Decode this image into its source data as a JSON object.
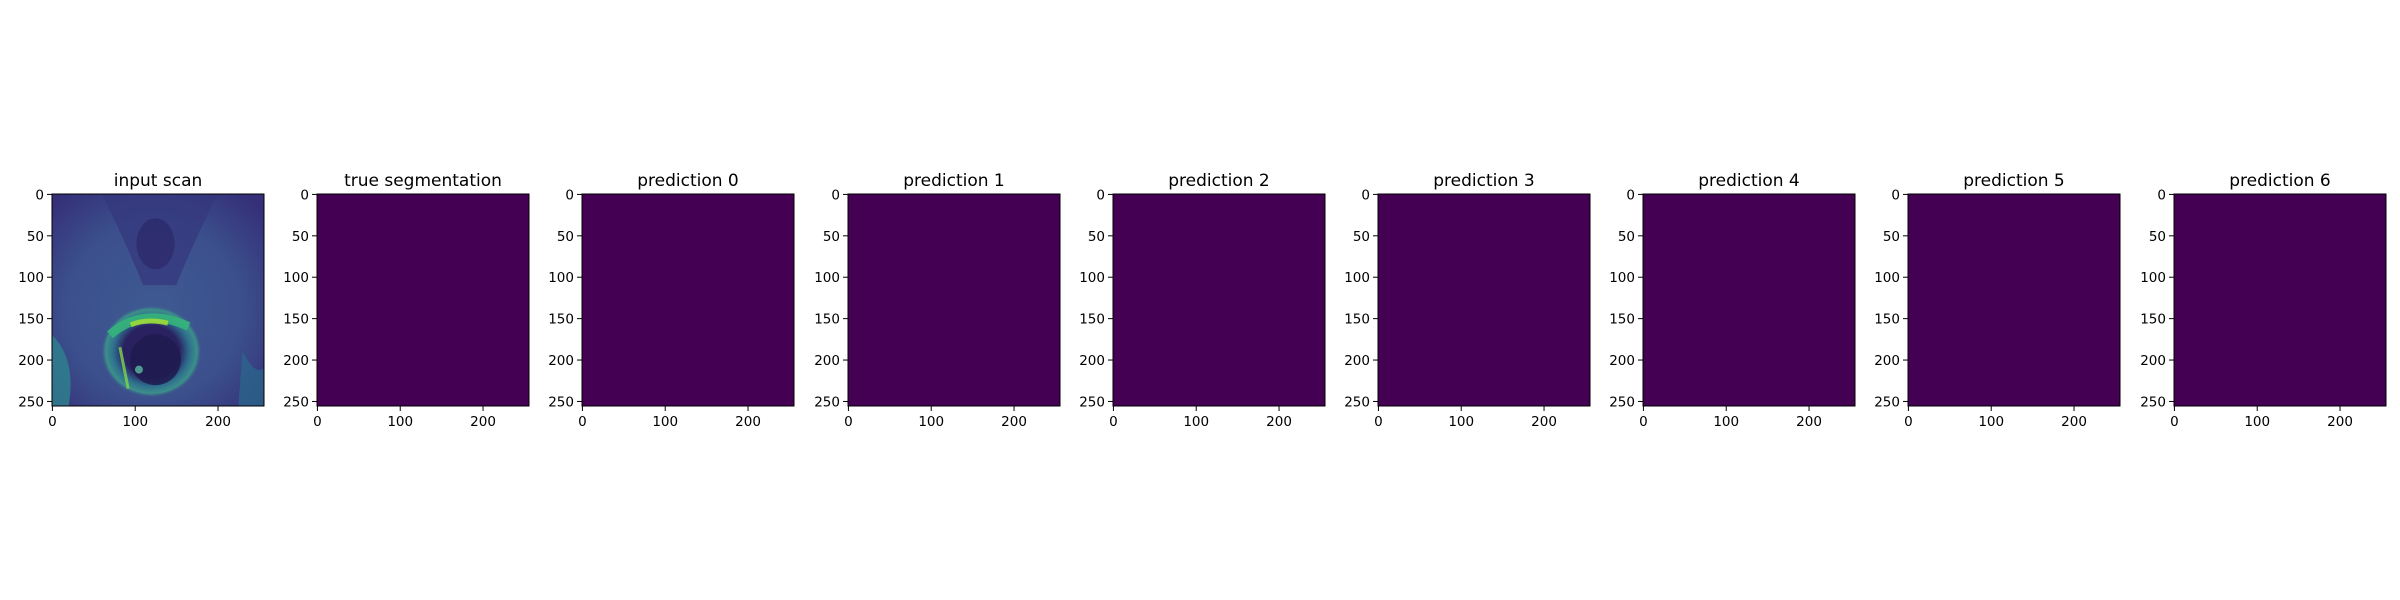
{
  "chart_data": {
    "type": "image_grid",
    "panels": [
      {
        "title": "input scan",
        "content": "mri-scan",
        "xlim": [
          0,
          255
        ],
        "ylim": [
          255,
          0
        ]
      },
      {
        "title": "true segmentation",
        "content": "uniform",
        "xlim": [
          0,
          255
        ],
        "ylim": [
          255,
          0
        ]
      },
      {
        "title": "prediction 0",
        "content": "uniform",
        "xlim": [
          0,
          255
        ],
        "ylim": [
          255,
          0
        ]
      },
      {
        "title": "prediction 1",
        "content": "uniform",
        "xlim": [
          0,
          255
        ],
        "ylim": [
          255,
          0
        ]
      },
      {
        "title": "prediction 2",
        "content": "uniform",
        "xlim": [
          0,
          255
        ],
        "ylim": [
          255,
          0
        ]
      },
      {
        "title": "prediction 3",
        "content": "uniform",
        "xlim": [
          0,
          255
        ],
        "ylim": [
          255,
          0
        ]
      },
      {
        "title": "prediction 4",
        "content": "uniform",
        "xlim": [
          0,
          255
        ],
        "ylim": [
          255,
          0
        ]
      },
      {
        "title": "prediction 5",
        "content": "uniform",
        "xlim": [
          0,
          255
        ],
        "ylim": [
          255,
          0
        ]
      },
      {
        "title": "prediction 6",
        "content": "uniform",
        "xlim": [
          0,
          255
        ],
        "ylim": [
          255,
          0
        ]
      }
    ],
    "x_ticks": [
      0,
      100,
      200
    ],
    "y_ticks": [
      0,
      50,
      100,
      150,
      200,
      250
    ],
    "colormap": "viridis",
    "colors": {
      "uniform_fill": "#440154",
      "scan_background": "#3b4f8c",
      "scan_dark": "#2f2a6e",
      "scan_bright": "#35b779",
      "scan_highlight": "#9fda3a"
    }
  }
}
